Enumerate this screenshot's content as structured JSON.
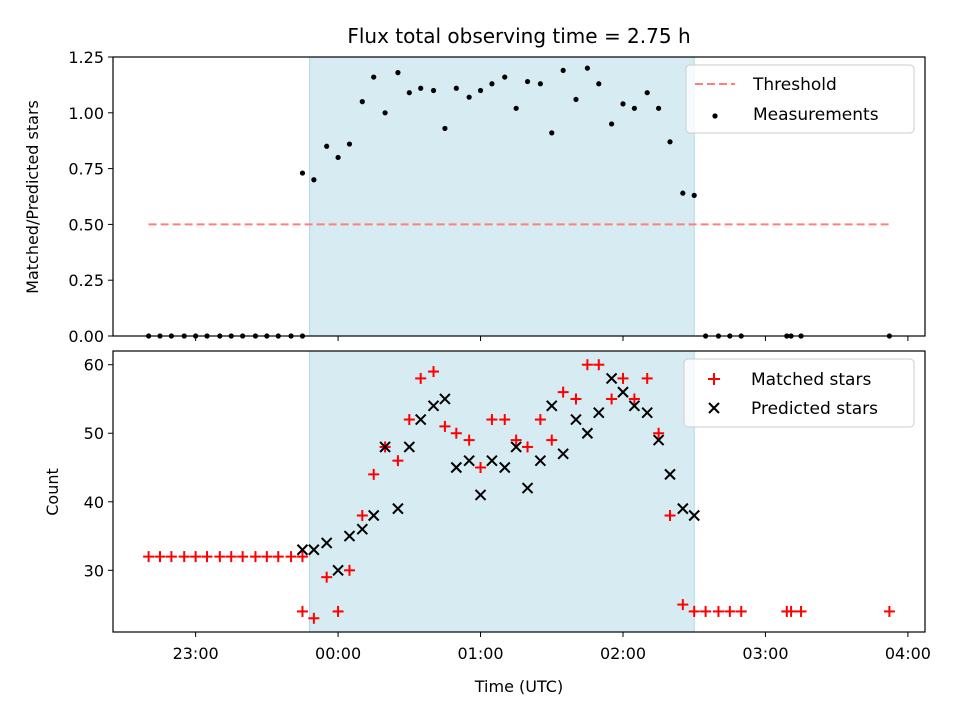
{
  "chart_data": [
    {
      "type": "scatter",
      "title": "Flux total observing time = 2.75 h",
      "xlabel": "",
      "ylabel": "Matched/Predicted stars",
      "ylim": [
        0,
        1.25
      ],
      "yticks": [
        "0.00",
        "0.25",
        "0.50",
        "0.75",
        "1.00",
        "1.25"
      ],
      "shaded_span_hours": [
        -0.2,
        2.5
      ],
      "threshold": {
        "name": "Threshold",
        "value": 0.5,
        "x_range_hours": [
          -1.33,
          3.87
        ],
        "color": "#ff7f7f"
      },
      "legend": [
        "Threshold",
        "Measurements"
      ],
      "series": [
        {
          "name": "Measurements",
          "color": "#000000",
          "points": [
            [
              -1.33,
              0
            ],
            [
              -1.25,
              0
            ],
            [
              -1.17,
              0
            ],
            [
              -1.08,
              0
            ],
            [
              -1.0,
              0
            ],
            [
              -0.92,
              0
            ],
            [
              -0.83,
              0
            ],
            [
              -0.75,
              0
            ],
            [
              -0.67,
              0
            ],
            [
              -0.58,
              0
            ],
            [
              -0.5,
              0
            ],
            [
              -0.42,
              0
            ],
            [
              -0.33,
              0
            ],
            [
              -0.25,
              0
            ],
            [
              -0.25,
              0.73
            ],
            [
              -0.17,
              0.7
            ],
            [
              -0.08,
              0.85
            ],
            [
              0.0,
              0.8
            ],
            [
              0.08,
              0.86
            ],
            [
              0.17,
              1.05
            ],
            [
              0.25,
              1.16
            ],
            [
              0.33,
              1.0
            ],
            [
              0.42,
              1.18
            ],
            [
              0.5,
              1.09
            ],
            [
              0.58,
              1.11
            ],
            [
              0.67,
              1.1
            ],
            [
              0.75,
              0.93
            ],
            [
              0.83,
              1.11
            ],
            [
              0.92,
              1.07
            ],
            [
              1.0,
              1.1
            ],
            [
              1.08,
              1.13
            ],
            [
              1.17,
              1.16
            ],
            [
              1.25,
              1.02
            ],
            [
              1.33,
              1.14
            ],
            [
              1.42,
              1.13
            ],
            [
              1.5,
              0.91
            ],
            [
              1.58,
              1.19
            ],
            [
              1.67,
              1.06
            ],
            [
              1.75,
              1.2
            ],
            [
              1.83,
              1.13
            ],
            [
              1.92,
              0.95
            ],
            [
              2.0,
              1.04
            ],
            [
              2.08,
              1.02
            ],
            [
              2.17,
              1.09
            ],
            [
              2.25,
              1.02
            ],
            [
              2.33,
              0.87
            ],
            [
              2.42,
              0.64
            ],
            [
              2.5,
              0.63
            ],
            [
              2.58,
              0
            ],
            [
              2.67,
              0
            ],
            [
              2.75,
              0
            ],
            [
              2.83,
              0
            ],
            [
              3.15,
              0
            ],
            [
              3.18,
              0
            ],
            [
              3.25,
              0
            ],
            [
              3.87,
              0
            ]
          ]
        }
      ]
    },
    {
      "type": "scatter",
      "title": "",
      "xlabel": "Time (UTC)",
      "ylabel": "Count",
      "ylim": [
        21,
        62
      ],
      "yticks": [
        "30",
        "40",
        "50",
        "60"
      ],
      "xlim_hours": [
        -1.58,
        4.12
      ],
      "xticks": [
        {
          "hours": -1.0,
          "label": "23:00"
        },
        {
          "hours": 0.0,
          "label": "00:00"
        },
        {
          "hours": 1.0,
          "label": "01:00"
        },
        {
          "hours": 2.0,
          "label": "02:00"
        },
        {
          "hours": 3.0,
          "label": "03:00"
        },
        {
          "hours": 4.0,
          "label": "04:00"
        }
      ],
      "shaded_span_hours": [
        -0.2,
        2.5
      ],
      "legend": [
        "Matched stars",
        "Predicted stars"
      ],
      "series": [
        {
          "name": "Matched stars",
          "marker": "+",
          "color": "#ff0000",
          "points": [
            [
              -1.33,
              32
            ],
            [
              -1.25,
              32
            ],
            [
              -1.17,
              32
            ],
            [
              -1.08,
              32
            ],
            [
              -1.0,
              32
            ],
            [
              -0.92,
              32
            ],
            [
              -0.83,
              32
            ],
            [
              -0.75,
              32
            ],
            [
              -0.67,
              32
            ],
            [
              -0.58,
              32
            ],
            [
              -0.5,
              32
            ],
            [
              -0.42,
              32
            ],
            [
              -0.33,
              32
            ],
            [
              -0.25,
              32
            ],
            [
              -0.25,
              24
            ],
            [
              -0.17,
              23
            ],
            [
              -0.08,
              29
            ],
            [
              0.0,
              24
            ],
            [
              0.08,
              30
            ],
            [
              0.17,
              38
            ],
            [
              0.25,
              44
            ],
            [
              0.33,
              48
            ],
            [
              0.42,
              46
            ],
            [
              0.5,
              52
            ],
            [
              0.58,
              58
            ],
            [
              0.67,
              59
            ],
            [
              0.75,
              51
            ],
            [
              0.83,
              50
            ],
            [
              0.92,
              49
            ],
            [
              1.0,
              45
            ],
            [
              1.08,
              52
            ],
            [
              1.17,
              52
            ],
            [
              1.25,
              49
            ],
            [
              1.33,
              48
            ],
            [
              1.42,
              52
            ],
            [
              1.5,
              49
            ],
            [
              1.58,
              56
            ],
            [
              1.67,
              55
            ],
            [
              1.75,
              60
            ],
            [
              1.83,
              60
            ],
            [
              1.92,
              55
            ],
            [
              2.0,
              58
            ],
            [
              2.08,
              55
            ],
            [
              2.17,
              58
            ],
            [
              2.25,
              50
            ],
            [
              2.33,
              38
            ],
            [
              2.42,
              25
            ],
            [
              2.5,
              24
            ],
            [
              2.58,
              24
            ],
            [
              2.67,
              24
            ],
            [
              2.75,
              24
            ],
            [
              2.83,
              24
            ],
            [
              3.15,
              24
            ],
            [
              3.18,
              24
            ],
            [
              3.25,
              24
            ],
            [
              3.87,
              24
            ]
          ]
        },
        {
          "name": "Predicted stars",
          "marker": "x",
          "color": "#000000",
          "points": [
            [
              -0.25,
              33
            ],
            [
              -0.17,
              33
            ],
            [
              -0.08,
              34
            ],
            [
              0.0,
              30
            ],
            [
              0.08,
              35
            ],
            [
              0.17,
              36
            ],
            [
              0.25,
              38
            ],
            [
              0.33,
              48
            ],
            [
              0.42,
              39
            ],
            [
              0.5,
              48
            ],
            [
              0.58,
              52
            ],
            [
              0.67,
              54
            ],
            [
              0.75,
              55
            ],
            [
              0.83,
              45
            ],
            [
              0.92,
              46
            ],
            [
              1.0,
              41
            ],
            [
              1.08,
              46
            ],
            [
              1.17,
              45
            ],
            [
              1.25,
              48
            ],
            [
              1.33,
              42
            ],
            [
              1.42,
              46
            ],
            [
              1.5,
              54
            ],
            [
              1.58,
              47
            ],
            [
              1.67,
              52
            ],
            [
              1.75,
              50
            ],
            [
              1.83,
              53
            ],
            [
              1.92,
              58
            ],
            [
              2.0,
              56
            ],
            [
              2.08,
              54
            ],
            [
              2.17,
              53
            ],
            [
              2.25,
              49
            ],
            [
              2.33,
              44
            ],
            [
              2.42,
              39
            ],
            [
              2.5,
              38
            ]
          ]
        }
      ]
    }
  ]
}
